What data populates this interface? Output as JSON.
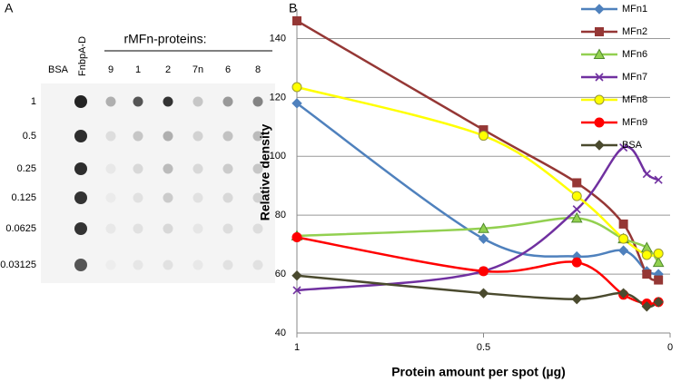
{
  "panel_a": {
    "label": "A",
    "header": "rMFn-proteins:",
    "lanes": [
      "BSA",
      "FnbpA-D",
      "9",
      "1",
      "2",
      "7n",
      "6",
      "8"
    ],
    "amounts": [
      "1",
      "0.5",
      "0.25",
      "0.125",
      "0.0625",
      "0.03125"
    ]
  },
  "chart_data": {
    "type": "line",
    "panel_label": "B",
    "x": [
      1,
      0.5,
      0.25,
      0.125,
      0.0625,
      0.03125
    ],
    "xlim": [
      1,
      0
    ],
    "xticks": [
      1,
      0.5,
      0
    ],
    "ylim": [
      40,
      150
    ],
    "yticks": [
      40,
      60,
      80,
      100,
      120,
      140
    ],
    "x_label": "Protein amount per spot (µg)",
    "y_label": "Relative density",
    "grid": true,
    "legend": "upper right",
    "series": [
      {
        "name": "MFn1",
        "color": "#4f81bd",
        "marker": "diamond",
        "values": [
          118,
          72,
          66,
          68,
          61,
          60
        ]
      },
      {
        "name": "MFn2",
        "color": "#953735",
        "marker": "square",
        "values": [
          146,
          109,
          91,
          77,
          60,
          58
        ]
      },
      {
        "name": "MFn6",
        "color": "#92d050",
        "marker": "triangle",
        "values": [
          73,
          75.5,
          79,
          72,
          69,
          64
        ]
      },
      {
        "name": "MFn7",
        "color": "#7030a0",
        "marker": "x",
        "values": [
          54.5,
          61,
          82,
          103,
          94,
          92
        ]
      },
      {
        "name": "MFn8",
        "color": "#ffff00",
        "marker": "circle",
        "values": [
          123.5,
          107,
          86.5,
          72,
          66.5,
          67
        ]
      },
      {
        "name": "MFn9",
        "color": "#ff0000",
        "marker": "circle",
        "values": [
          72.5,
          61,
          64,
          53,
          50,
          50.5
        ]
      },
      {
        "name": "BSA",
        "color": "#4a4a2e",
        "marker": "diamond",
        "values": [
          59.5,
          53.5,
          51.5,
          53.5,
          49,
          50.5
        ]
      }
    ]
  }
}
